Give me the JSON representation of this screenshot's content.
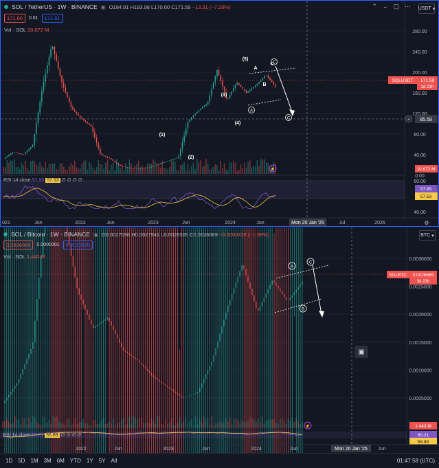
{
  "top": {
    "symbol": "SOL / TetherUS · 1W · BINANCE",
    "ohlc": {
      "o": "O184.91",
      "h": "H193.98",
      "l": "L170.00",
      "c": "C171.59",
      "chg": "−13.31 (−7.20%)"
    },
    "bid": "171.60",
    "spread": "0.01",
    "ask": "171.61",
    "volume_label": "Vol · SOL",
    "volume_value": "10.672 M",
    "currency": "USDT",
    "price_ticks": [
      "280.00",
      "240.00",
      "200.00",
      "160.00",
      "120.00",
      "80.00",
      "40.00",
      "0.00"
    ],
    "price_tag_symbol": "SOLUSDT",
    "price_tag_value": "171.59",
    "price_tag_time": "3d 23h",
    "crosshair_value": "85.59",
    "volume_tag": "10.672 M",
    "rsi_label": "RSI 14 close",
    "rsi_value1": "57.95",
    "rsi_value2": "57.53",
    "rsi_nan": "∅ ∅ ∅ ∅",
    "rsi_ticks": [
      "60.00",
      "40.00"
    ],
    "rsi_tag1": "57.95",
    "rsi_tag2": "57.53",
    "time_ticks": [
      "021",
      "Jun",
      "2022",
      "Jun",
      "2023",
      "Jun",
      "2024",
      "Jun",
      "Jul",
      "2026"
    ],
    "time_marker": "Mon 20 Jan '25",
    "wave_labels": [
      "(1)",
      "(2)",
      "(3)",
      "(4)",
      "(5)",
      "A",
      "B",
      "C",
      "A",
      "B",
      "C"
    ]
  },
  "bottom": {
    "symbol": "SOL / Bitcoin · 1W · BINANCE",
    "ohlc": {
      "o": "O0.0027096",
      "h": "H0.0027941",
      "l": "L0.0026505",
      "c": "C0.0026669",
      "chg": "−0.0000428 (−1.58%)"
    },
    "bid": "0.0026669",
    "spread": "0.0000001",
    "ask": "0.0026670",
    "volume_label": "Vol · SOL",
    "volume_value": "1.443 M",
    "currency": "BTC",
    "price_ticks": [
      "0.0030000",
      "0.0025000",
      "0.0020000",
      "0.0015000",
      "0.0010000",
      "0.0005000",
      "0.0000000"
    ],
    "price_tag_symbol": "SOLBTC",
    "price_tag_value": "0.0026669",
    "price_tag_time": "3d 23h",
    "volume_tag": "1.443 M",
    "rsi_label": "RSI 14 close",
    "rsi_value1": "60.21",
    "rsi_value2": "55.89",
    "rsi_nan": "∅ ∅ ∅ ∅",
    "rsi_tag1": "60.21",
    "rsi_tag2": "55.89",
    "time_ticks": [
      "2022",
      "Jun",
      "2023",
      "Jun",
      "2024",
      "Jun",
      "Jun"
    ],
    "time_marker": "Mon 20 Jan '25",
    "wave_labels": [
      "A",
      "B",
      "C"
    ]
  },
  "bottom_bar": {
    "timeframes": [
      "1D",
      "5D",
      "1M",
      "3M",
      "6M",
      "YTD",
      "1Y",
      "5Y",
      "All"
    ],
    "clock": "01:47:58 (UTC)"
  },
  "colors": {
    "bg": "#131722",
    "up": "#26a69a",
    "down": "#ef5350",
    "accent": "#2962ff",
    "rsi": "#7e57c2",
    "rsi_ma": "#f7c948"
  }
}
